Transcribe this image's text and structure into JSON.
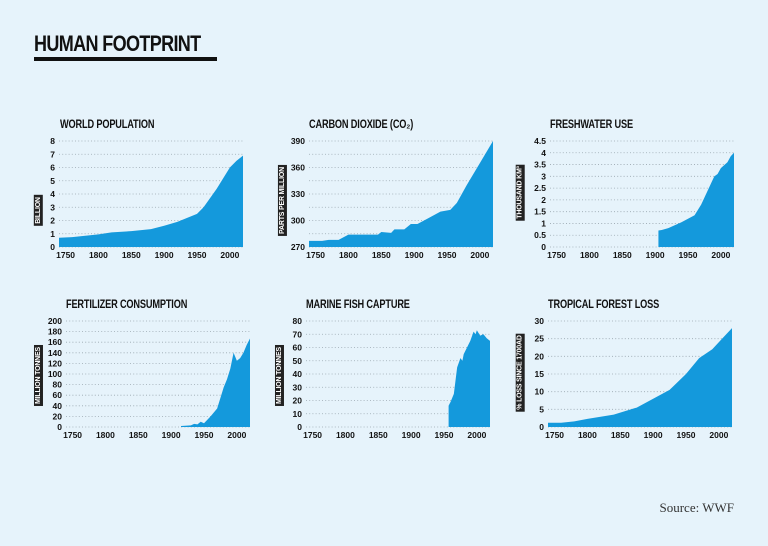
{
  "header": {
    "title": "HUMAN FOOTPRINT"
  },
  "footer": {
    "source": "Source: WWF"
  },
  "colors": {
    "background": "#e6f3fb",
    "area_fill": "#1499dc",
    "text": "#111111",
    "grid": "#9aa7b0"
  },
  "chart_data": [
    {
      "type": "area",
      "title": "WORLD POPULATION",
      "ylabel": "BILLION",
      "xlabel": "",
      "xlim": [
        1740,
        2020
      ],
      "ylim": [
        0,
        8
      ],
      "yticks": [
        0,
        1,
        2,
        3,
        4,
        5,
        6,
        7,
        8
      ],
      "ytick_labels": [
        "0",
        "1",
        "2",
        "3",
        "4",
        "5",
        "6",
        "7",
        "8"
      ],
      "xticks": [
        1750,
        1800,
        1850,
        1900,
        1950,
        2000
      ],
      "grid": true,
      "x": [
        1740,
        1760,
        1800,
        1820,
        1850,
        1880,
        1900,
        1920,
        1950,
        1960,
        1970,
        1980,
        1990,
        2000,
        2010,
        2020
      ],
      "values": [
        0.7,
        0.75,
        0.95,
        1.1,
        1.2,
        1.35,
        1.6,
        1.9,
        2.5,
        3.0,
        3.7,
        4.4,
        5.2,
        6.0,
        6.5,
        6.9
      ]
    },
    {
      "type": "area",
      "title": "CARBON DIOXIDE (CO₂)",
      "ylabel": "PARTS PER MILLION",
      "xlabel": "",
      "xlim": [
        1740,
        2020
      ],
      "ylim": [
        270,
        390
      ],
      "yticks": [
        270,
        285,
        300,
        315,
        330,
        345,
        360,
        375,
        390
      ],
      "ytick_labels": [
        "270",
        "",
        "300",
        "",
        "330",
        "",
        "360",
        "",
        "390"
      ],
      "xticks": [
        1750,
        1800,
        1850,
        1900,
        1950,
        2000
      ],
      "grid": true,
      "x": [
        1740,
        1760,
        1770,
        1785,
        1800,
        1820,
        1845,
        1850,
        1865,
        1870,
        1885,
        1895,
        1905,
        1920,
        1940,
        1955,
        1965,
        1980,
        2000,
        2020
      ],
      "values": [
        277,
        277,
        278,
        278,
        284,
        284,
        284,
        287,
        286,
        290,
        290,
        296,
        296,
        302,
        310,
        312,
        320,
        340,
        365,
        390
      ]
    },
    {
      "type": "area",
      "title": "FRESHWATER USE",
      "ylabel": "THOUSAND KM³",
      "xlabel": "",
      "xlim": [
        1740,
        2020
      ],
      "ylim": [
        0,
        4.5
      ],
      "yticks": [
        0,
        0.5,
        1,
        1.5,
        2,
        2.5,
        3,
        3.5,
        4,
        4.5
      ],
      "ytick_labels": [
        "0",
        "0.5",
        "1",
        "1.5",
        "2",
        "2.5",
        "3",
        "3.5",
        "4",
        "4.5"
      ],
      "xticks": [
        1750,
        1800,
        1850,
        1900,
        1950,
        2000
      ],
      "grid": true,
      "x": [
        1905,
        1910,
        1920,
        1940,
        1960,
        1970,
        1980,
        1990,
        1995,
        2000,
        2010,
        2015,
        2020
      ],
      "values": [
        0.7,
        0.72,
        0.8,
        1.05,
        1.35,
        1.8,
        2.4,
        3.0,
        3.1,
        3.35,
        3.6,
        3.85,
        4.0
      ]
    },
    {
      "type": "area",
      "title": "FERTILIZER CONSUMPTION",
      "ylabel": "MILLION TONNES",
      "xlabel": "",
      "xlim": [
        1740,
        2020
      ],
      "ylim": [
        0,
        200
      ],
      "yticks": [
        0,
        20,
        40,
        60,
        80,
        100,
        120,
        140,
        160,
        180,
        200
      ],
      "ytick_labels": [
        "0",
        "20",
        "40",
        "60",
        "80",
        "100",
        "120",
        "140",
        "160",
        "180",
        "200"
      ],
      "xticks": [
        1750,
        1800,
        1850,
        1900,
        1950,
        2000
      ],
      "grid": true,
      "x": [
        1915,
        1930,
        1935,
        1940,
        1945,
        1950,
        1960,
        1970,
        1975,
        1980,
        1985,
        1990,
        1995,
        2000,
        2005,
        2010,
        2015,
        2020
      ],
      "values": [
        2,
        3,
        6,
        5,
        10,
        7,
        20,
        35,
        55,
        75,
        90,
        110,
        140,
        125,
        130,
        140,
        155,
        167
      ]
    },
    {
      "type": "area",
      "title": "MARINE FISH CAPTURE",
      "ylabel": "MILLION TONNES",
      "xlabel": "",
      "xlim": [
        1740,
        2020
      ],
      "ylim": [
        0,
        80
      ],
      "yticks": [
        0,
        10,
        20,
        30,
        40,
        50,
        60,
        70,
        80
      ],
      "ytick_labels": [
        "0",
        "10",
        "20",
        "30",
        "40",
        "50",
        "60",
        "70",
        "80"
      ],
      "xticks": [
        1750,
        1800,
        1850,
        1900,
        1950,
        2000
      ],
      "grid": true,
      "x": [
        1957,
        1960,
        1965,
        1970,
        1975,
        1978,
        1980,
        1985,
        1990,
        1995,
        1998,
        2000,
        2005,
        2010,
        2015,
        2020
      ],
      "values": [
        16,
        19,
        25,
        45,
        52,
        50,
        55,
        60,
        65,
        72,
        70,
        73,
        69,
        70,
        67,
        65
      ]
    },
    {
      "type": "area",
      "title": "TROPICAL FOREST LOSS",
      "ylabel": "% LOSS SINCE 1700AD",
      "xlabel": "",
      "xlim": [
        1740,
        2020
      ],
      "ylim": [
        0,
        30
      ],
      "yticks": [
        0,
        5,
        10,
        15,
        20,
        25,
        30
      ],
      "ytick_labels": [
        "0",
        "5",
        "10",
        "15",
        "20",
        "25",
        "30"
      ],
      "xticks": [
        1750,
        1800,
        1850,
        1900,
        1950,
        2000
      ],
      "grid": true,
      "x": [
        1740,
        1760,
        1780,
        1800,
        1840,
        1875,
        1900,
        1925,
        1950,
        1970,
        1990,
        2005,
        2020
      ],
      "values": [
        1.2,
        1.2,
        1.6,
        2.3,
        3.5,
        5.5,
        8.0,
        10.5,
        15.0,
        19.5,
        22.0,
        25.0,
        28.0
      ]
    }
  ]
}
